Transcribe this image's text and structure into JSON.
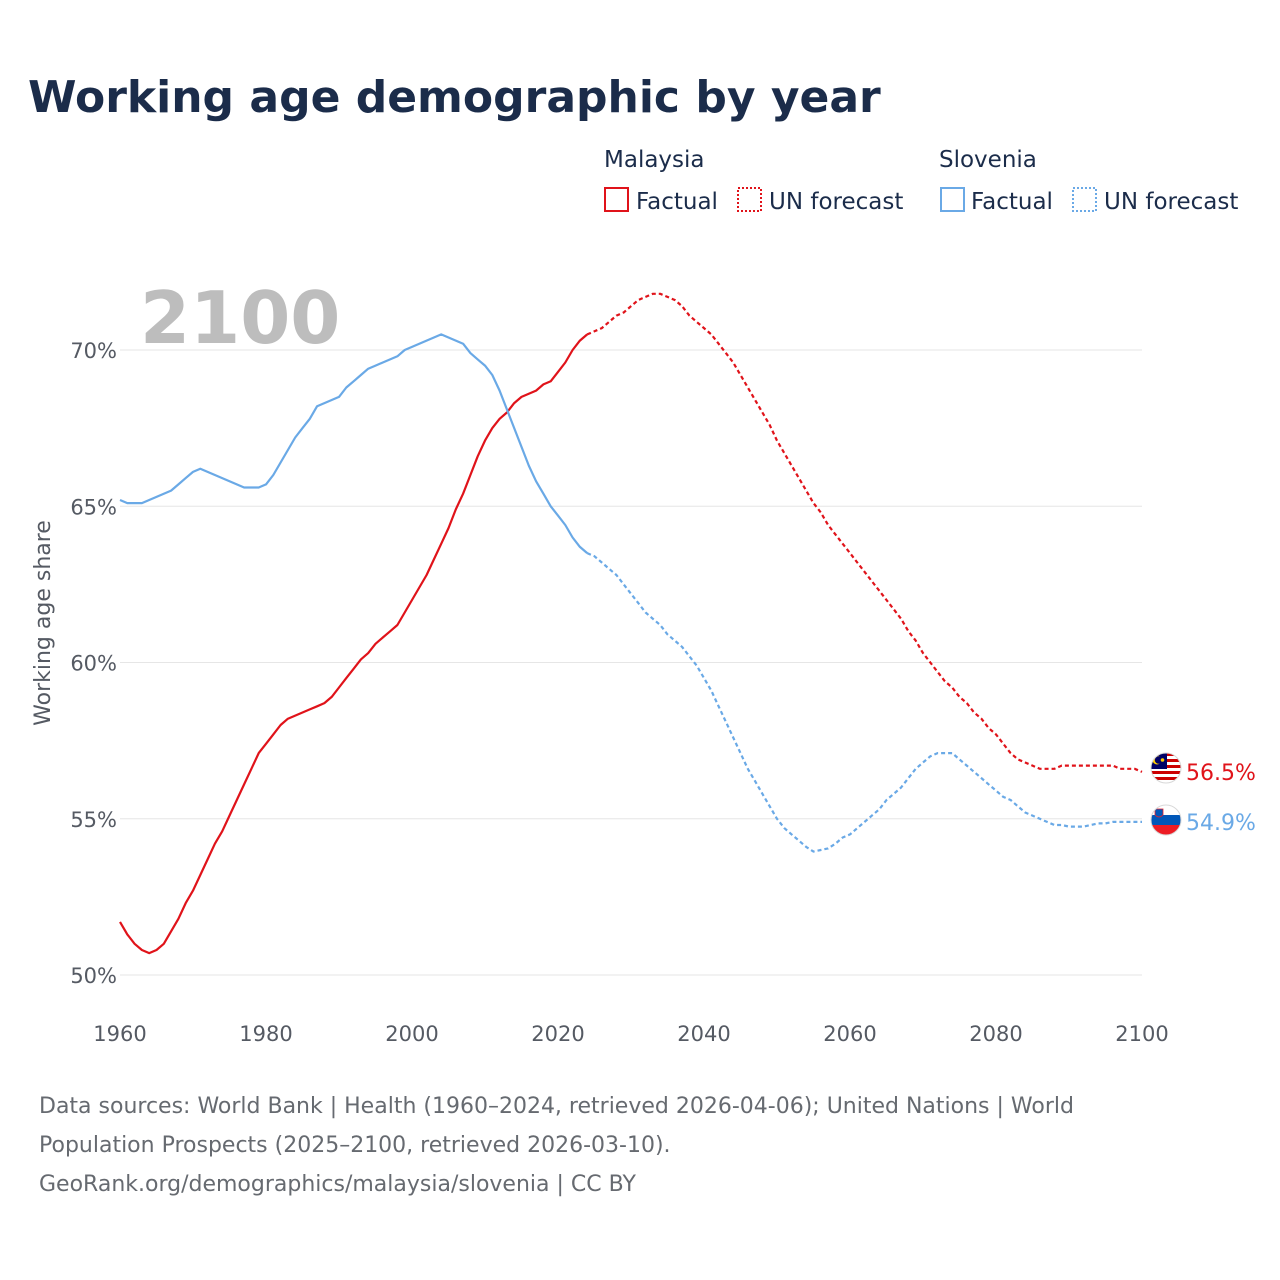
{
  "title": "Working age demographic by year",
  "year_label": "2100",
  "legend": {
    "groups": [
      {
        "country": "Malaysia",
        "color": "#e0131a",
        "factual_label": "Factual",
        "forecast_label": "UN forecast"
      },
      {
        "country": "Slovenia",
        "color": "#6aa9e6",
        "factual_label": "Factual",
        "forecast_label": "UN forecast"
      }
    ]
  },
  "chart_data": {
    "type": "line",
    "title": "Working age demographic by year",
    "xlabel": "",
    "ylabel": "Working age share",
    "xlim": [
      1960,
      2100
    ],
    "ylim": [
      50,
      72
    ],
    "x_ticks": [
      1960,
      1980,
      2000,
      2020,
      2040,
      2060,
      2080,
      2100
    ],
    "x_tick_labels": [
      "1960",
      "1980",
      "2000",
      "2020",
      "2040",
      "2060",
      "2080",
      "2100"
    ],
    "y_ticks": [
      50,
      55,
      60,
      65,
      70
    ],
    "y_tick_labels": [
      "50%",
      "55%",
      "60%",
      "65%",
      "70%"
    ],
    "forecast_start": 2024,
    "series": [
      {
        "name": "Malaysia",
        "color": "#e0131a",
        "end_label": "56.5%",
        "points": [
          [
            1960,
            51.7
          ],
          [
            1961,
            51.3
          ],
          [
            1962,
            51.0
          ],
          [
            1963,
            50.8
          ],
          [
            1964,
            50.7
          ],
          [
            1965,
            50.8
          ],
          [
            1966,
            51.0
          ],
          [
            1967,
            51.4
          ],
          [
            1968,
            51.8
          ],
          [
            1969,
            52.3
          ],
          [
            1970,
            52.7
          ],
          [
            1971,
            53.2
          ],
          [
            1972,
            53.7
          ],
          [
            1973,
            54.2
          ],
          [
            1974,
            54.6
          ],
          [
            1975,
            55.1
          ],
          [
            1976,
            55.6
          ],
          [
            1977,
            56.1
          ],
          [
            1978,
            56.6
          ],
          [
            1979,
            57.1
          ],
          [
            1980,
            57.4
          ],
          [
            1981,
            57.7
          ],
          [
            1982,
            58.0
          ],
          [
            1983,
            58.2
          ],
          [
            1984,
            58.3
          ],
          [
            1985,
            58.4
          ],
          [
            1986,
            58.5
          ],
          [
            1987,
            58.6
          ],
          [
            1988,
            58.7
          ],
          [
            1989,
            58.9
          ],
          [
            1990,
            59.2
          ],
          [
            1991,
            59.5
          ],
          [
            1992,
            59.8
          ],
          [
            1993,
            60.1
          ],
          [
            1994,
            60.3
          ],
          [
            1995,
            60.6
          ],
          [
            1996,
            60.8
          ],
          [
            1997,
            61.0
          ],
          [
            1998,
            61.2
          ],
          [
            1999,
            61.6
          ],
          [
            2000,
            62.0
          ],
          [
            2001,
            62.4
          ],
          [
            2002,
            62.8
          ],
          [
            2003,
            63.3
          ],
          [
            2004,
            63.8
          ],
          [
            2005,
            64.3
          ],
          [
            2006,
            64.9
          ],
          [
            2007,
            65.4
          ],
          [
            2008,
            66.0
          ],
          [
            2009,
            66.6
          ],
          [
            2010,
            67.1
          ],
          [
            2011,
            67.5
          ],
          [
            2012,
            67.8
          ],
          [
            2013,
            68.0
          ],
          [
            2014,
            68.3
          ],
          [
            2015,
            68.5
          ],
          [
            2016,
            68.6
          ],
          [
            2017,
            68.7
          ],
          [
            2018,
            68.9
          ],
          [
            2019,
            69.0
          ],
          [
            2020,
            69.3
          ],
          [
            2021,
            69.6
          ],
          [
            2022,
            70.0
          ],
          [
            2023,
            70.3
          ],
          [
            2024,
            70.5
          ],
          [
            2025,
            70.6
          ],
          [
            2026,
            70.7
          ],
          [
            2027,
            70.9
          ],
          [
            2028,
            71.1
          ],
          [
            2029,
            71.2
          ],
          [
            2030,
            71.4
          ],
          [
            2031,
            71.6
          ],
          [
            2032,
            71.7
          ],
          [
            2033,
            71.8
          ],
          [
            2034,
            71.8
          ],
          [
            2035,
            71.7
          ],
          [
            2036,
            71.6
          ],
          [
            2037,
            71.4
          ],
          [
            2038,
            71.1
          ],
          [
            2039,
            70.9
          ],
          [
            2040,
            70.7
          ],
          [
            2041,
            70.5
          ],
          [
            2042,
            70.2
          ],
          [
            2043,
            69.9
          ],
          [
            2044,
            69.6
          ],
          [
            2045,
            69.2
          ],
          [
            2046,
            68.8
          ],
          [
            2047,
            68.4
          ],
          [
            2048,
            68.0
          ],
          [
            2049,
            67.6
          ],
          [
            2050,
            67.1
          ],
          [
            2051,
            66.7
          ],
          [
            2052,
            66.3
          ],
          [
            2053,
            65.9
          ],
          [
            2054,
            65.5
          ],
          [
            2055,
            65.1
          ],
          [
            2056,
            64.8
          ],
          [
            2057,
            64.4
          ],
          [
            2058,
            64.1
          ],
          [
            2059,
            63.8
          ],
          [
            2060,
            63.5
          ],
          [
            2061,
            63.2
          ],
          [
            2062,
            62.9
          ],
          [
            2063,
            62.6
          ],
          [
            2064,
            62.3
          ],
          [
            2065,
            62.0
          ],
          [
            2066,
            61.7
          ],
          [
            2067,
            61.4
          ],
          [
            2068,
            61.0
          ],
          [
            2069,
            60.7
          ],
          [
            2070,
            60.3
          ],
          [
            2071,
            60.0
          ],
          [
            2072,
            59.7
          ],
          [
            2073,
            59.4
          ],
          [
            2074,
            59.2
          ],
          [
            2075,
            58.9
          ],
          [
            2076,
            58.7
          ],
          [
            2077,
            58.4
          ],
          [
            2078,
            58.2
          ],
          [
            2079,
            57.9
          ],
          [
            2080,
            57.7
          ],
          [
            2081,
            57.4
          ],
          [
            2082,
            57.1
          ],
          [
            2083,
            56.9
          ],
          [
            2084,
            56.8
          ],
          [
            2085,
            56.7
          ],
          [
            2086,
            56.6
          ],
          [
            2087,
            56.6
          ],
          [
            2088,
            56.6
          ],
          [
            2089,
            56.7
          ],
          [
            2090,
            56.7
          ],
          [
            2091,
            56.7
          ],
          [
            2092,
            56.7
          ],
          [
            2093,
            56.7
          ],
          [
            2094,
            56.7
          ],
          [
            2095,
            56.7
          ],
          [
            2096,
            56.7
          ],
          [
            2097,
            56.6
          ],
          [
            2098,
            56.6
          ],
          [
            2099,
            56.6
          ],
          [
            2100,
            56.5
          ]
        ]
      },
      {
        "name": "Slovenia",
        "color": "#6aa9e6",
        "end_label": "54.9%",
        "points": [
          [
            1960,
            65.2
          ],
          [
            1961,
            65.1
          ],
          [
            1962,
            65.1
          ],
          [
            1963,
            65.1
          ],
          [
            1964,
            65.2
          ],
          [
            1965,
            65.3
          ],
          [
            1966,
            65.4
          ],
          [
            1967,
            65.5
          ],
          [
            1968,
            65.7
          ],
          [
            1969,
            65.9
          ],
          [
            1970,
            66.1
          ],
          [
            1971,
            66.2
          ],
          [
            1972,
            66.1
          ],
          [
            1973,
            66.0
          ],
          [
            1974,
            65.9
          ],
          [
            1975,
            65.8
          ],
          [
            1976,
            65.7
          ],
          [
            1977,
            65.6
          ],
          [
            1978,
            65.6
          ],
          [
            1979,
            65.6
          ],
          [
            1980,
            65.7
          ],
          [
            1981,
            66.0
          ],
          [
            1982,
            66.4
          ],
          [
            1983,
            66.8
          ],
          [
            1984,
            67.2
          ],
          [
            1985,
            67.5
          ],
          [
            1986,
            67.8
          ],
          [
            1987,
            68.2
          ],
          [
            1988,
            68.3
          ],
          [
            1989,
            68.4
          ],
          [
            1990,
            68.5
          ],
          [
            1991,
            68.8
          ],
          [
            1992,
            69.0
          ],
          [
            1993,
            69.2
          ],
          [
            1994,
            69.4
          ],
          [
            1995,
            69.5
          ],
          [
            1996,
            69.6
          ],
          [
            1997,
            69.7
          ],
          [
            1998,
            69.8
          ],
          [
            1999,
            70.0
          ],
          [
            2000,
            70.1
          ],
          [
            2001,
            70.2
          ],
          [
            2002,
            70.3
          ],
          [
            2003,
            70.4
          ],
          [
            2004,
            70.5
          ],
          [
            2005,
            70.4
          ],
          [
            2006,
            70.3
          ],
          [
            2007,
            70.2
          ],
          [
            2008,
            69.9
          ],
          [
            2009,
            69.7
          ],
          [
            2010,
            69.5
          ],
          [
            2011,
            69.2
          ],
          [
            2012,
            68.7
          ],
          [
            2013,
            68.1
          ],
          [
            2014,
            67.5
          ],
          [
            2015,
            66.9
          ],
          [
            2016,
            66.3
          ],
          [
            2017,
            65.8
          ],
          [
            2018,
            65.4
          ],
          [
            2019,
            65.0
          ],
          [
            2020,
            64.7
          ],
          [
            2021,
            64.4
          ],
          [
            2022,
            64.0
          ],
          [
            2023,
            63.7
          ],
          [
            2024,
            63.5
          ],
          [
            2025,
            63.4
          ],
          [
            2026,
            63.2
          ],
          [
            2027,
            63.0
          ],
          [
            2028,
            62.8
          ],
          [
            2029,
            62.5
          ],
          [
            2030,
            62.2
          ],
          [
            2031,
            61.9
          ],
          [
            2032,
            61.6
          ],
          [
            2033,
            61.4
          ],
          [
            2034,
            61.2
          ],
          [
            2035,
            60.9
          ],
          [
            2036,
            60.7
          ],
          [
            2037,
            60.5
          ],
          [
            2038,
            60.2
          ],
          [
            2039,
            59.9
          ],
          [
            2040,
            59.5
          ],
          [
            2041,
            59.1
          ],
          [
            2042,
            58.6
          ],
          [
            2043,
            58.1
          ],
          [
            2044,
            57.6
          ],
          [
            2045,
            57.1
          ],
          [
            2046,
            56.6
          ],
          [
            2047,
            56.2
          ],
          [
            2048,
            55.8
          ],
          [
            2049,
            55.4
          ],
          [
            2050,
            55.0
          ],
          [
            2051,
            54.7
          ],
          [
            2052,
            54.5
          ],
          [
            2053,
            54.3
          ],
          [
            2054,
            54.1
          ],
          [
            2055,
            53.95
          ],
          [
            2056,
            54.0
          ],
          [
            2057,
            54.05
          ],
          [
            2058,
            54.2
          ],
          [
            2059,
            54.4
          ],
          [
            2060,
            54.5
          ],
          [
            2061,
            54.7
          ],
          [
            2062,
            54.9
          ],
          [
            2063,
            55.1
          ],
          [
            2064,
            55.3
          ],
          [
            2065,
            55.6
          ],
          [
            2066,
            55.8
          ],
          [
            2067,
            56.0
          ],
          [
            2068,
            56.3
          ],
          [
            2069,
            56.6
          ],
          [
            2070,
            56.8
          ],
          [
            2071,
            57.0
          ],
          [
            2072,
            57.1
          ],
          [
            2073,
            57.1
          ],
          [
            2074,
            57.1
          ],
          [
            2075,
            56.9
          ],
          [
            2076,
            56.7
          ],
          [
            2077,
            56.5
          ],
          [
            2078,
            56.3
          ],
          [
            2079,
            56.1
          ],
          [
            2080,
            55.9
          ],
          [
            2081,
            55.7
          ],
          [
            2082,
            55.6
          ],
          [
            2083,
            55.4
          ],
          [
            2084,
            55.2
          ],
          [
            2085,
            55.1
          ],
          [
            2086,
            55.0
          ],
          [
            2087,
            54.9
          ],
          [
            2088,
            54.8
          ],
          [
            2089,
            54.8
          ],
          [
            2090,
            54.75
          ],
          [
            2091,
            54.75
          ],
          [
            2092,
            54.75
          ],
          [
            2093,
            54.8
          ],
          [
            2094,
            54.85
          ],
          [
            2095,
            54.85
          ],
          [
            2096,
            54.9
          ],
          [
            2097,
            54.9
          ],
          [
            2098,
            54.9
          ],
          [
            2099,
            54.9
          ],
          [
            2100,
            54.9
          ]
        ]
      }
    ]
  },
  "source": {
    "line1": "Data sources: World Bank | Health (1960–2024, retrieved 2026-04-06); United Nations | World",
    "line2": "Population Prospects (2025–2100, retrieved 2026-03-10).",
    "line3": "GeoRank.org/demographics/malaysia/slovenia | CC BY"
  }
}
